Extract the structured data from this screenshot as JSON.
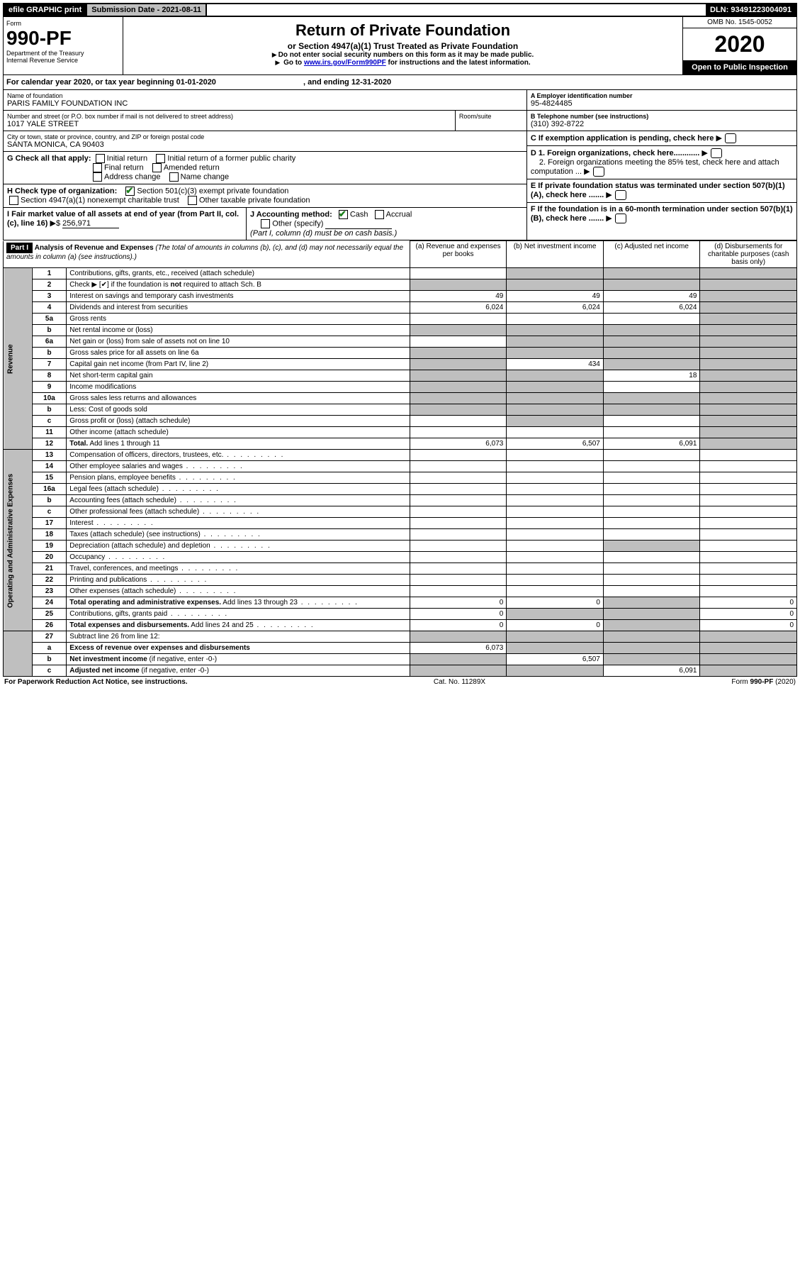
{
  "topbar": {
    "efile": "efile GRAPHIC print",
    "submission": "Submission Date - 2021-08-11",
    "dln": "DLN: 93491223004091"
  },
  "header": {
    "form_word": "Form",
    "form_no": "990-PF",
    "dept": "Department of the Treasury",
    "irs": "Internal Revenue Service",
    "title": "Return of Private Foundation",
    "subtitle": "or Section 4947(a)(1) Trust Treated as Private Foundation",
    "instr1": "Do not enter social security numbers on this form as it may be made public.",
    "instr2_pre": "Go to ",
    "instr2_link": "www.irs.gov/Form990PF",
    "instr2_post": " for instructions and the latest information.",
    "omb": "OMB No. 1545-0052",
    "year": "2020",
    "open": "Open to Public Inspection"
  },
  "calendar": {
    "pre": "For calendar year 2020, or tax year beginning ",
    "begin": "01-01-2020",
    "mid": ", and ending ",
    "end": "12-31-2020"
  },
  "id": {
    "name_lbl": "Name of foundation",
    "name": "PARIS FAMILY FOUNDATION INC",
    "addr_lbl": "Number and street (or P.O. box number if mail is not delivered to street address)",
    "room_lbl": "Room/suite",
    "addr": "1017 YALE STREET",
    "city_lbl": "City or town, state or province, country, and ZIP or foreign postal code",
    "city": "SANTA MONICA, CA  90403",
    "a_lbl": "A Employer identification number",
    "a": "95-4824485",
    "b_lbl": "B Telephone number (see instructions)",
    "b": "(310) 392-8722",
    "c": "C If exemption application is pending, check here",
    "d1": "D 1. Foreign organizations, check here............",
    "d2": "2. Foreign organizations meeting the 85% test, check here and attach computation ...",
    "e": "E If private foundation status was terminated under section 507(b)(1)(A), check here .......",
    "f": "F If the foundation is in a 60-month termination under section 507(b)(1)(B), check here ......."
  },
  "g": {
    "lbl": "G Check all that apply:",
    "opts": [
      "Initial return",
      "Initial return of a former public charity",
      "Final return",
      "Amended return",
      "Address change",
      "Name change"
    ]
  },
  "h": {
    "lbl": "H Check type of organization:",
    "o1": "Section 501(c)(3) exempt private foundation",
    "o2": "Section 4947(a)(1) nonexempt charitable trust",
    "o3": "Other taxable private foundation"
  },
  "i": {
    "lbl": "I Fair market value of all assets at end of year (from Part II, col. (c), line 16)",
    "arrow": "$",
    "val": "256,971"
  },
  "j": {
    "lbl": "J Accounting method:",
    "o1": "Cash",
    "o2": "Accrual",
    "o3": "Other (specify)",
    "note": "(Part I, column (d) must be on cash basis.)"
  },
  "part1": {
    "hdr": "Part I",
    "title": "Analysis of Revenue and Expenses",
    "title_note": "(The total of amounts in columns (b), (c), and (d) may not necessarily equal the amounts in column (a) (see instructions).)",
    "col_a": "(a)   Revenue and expenses per books",
    "col_b": "(b)  Net investment income",
    "col_c": "(c)  Adjusted net income",
    "col_d": "(d)  Disbursements for charitable purposes (cash basis only)"
  },
  "vert": {
    "rev": "Revenue",
    "exp": "Operating and Administrative Expenses"
  },
  "lines": [
    {
      "n": "1",
      "t": "Contributions, gifts, grants, etc., received (attach schedule)",
      "a": "",
      "b": "s",
      "c": "s",
      "d": "s"
    },
    {
      "n": "2",
      "t": "Check ▶ [✔] if the foundation is <b>not</b> required to attach Sch. B",
      "a": "s",
      "b": "s",
      "c": "s",
      "d": "s"
    },
    {
      "n": "3",
      "t": "Interest on savings and temporary cash investments",
      "a": "49",
      "b": "49",
      "c": "49",
      "d": "s"
    },
    {
      "n": "4",
      "t": "Dividends and interest from securities",
      "a": "6,024",
      "b": "6,024",
      "c": "6,024",
      "d": "s"
    },
    {
      "n": "5a",
      "t": "Gross rents",
      "a": "",
      "b": "",
      "c": "",
      "d": "s"
    },
    {
      "n": "b",
      "t": "Net rental income or (loss)",
      "a": "s",
      "b": "s",
      "c": "s",
      "d": "s"
    },
    {
      "n": "6a",
      "t": "Net gain or (loss) from sale of assets not on line 10",
      "a": "",
      "b": "s",
      "c": "s",
      "d": "s"
    },
    {
      "n": "b",
      "t": "Gross sales price for all assets on line 6a",
      "a": "s",
      "b": "s",
      "c": "s",
      "d": "s"
    },
    {
      "n": "7",
      "t": "Capital gain net income (from Part IV, line 2)",
      "a": "s",
      "b": "434",
      "c": "s",
      "d": "s"
    },
    {
      "n": "8",
      "t": "Net short-term capital gain",
      "a": "s",
      "b": "s",
      "c": "18",
      "d": "s"
    },
    {
      "n": "9",
      "t": "Income modifications",
      "a": "s",
      "b": "s",
      "c": "",
      "d": "s"
    },
    {
      "n": "10a",
      "t": "Gross sales less returns and allowances",
      "a": "s",
      "b": "s",
      "c": "s",
      "d": "s"
    },
    {
      "n": "b",
      "t": "Less: Cost of goods sold",
      "a": "s",
      "b": "s",
      "c": "s",
      "d": "s"
    },
    {
      "n": "c",
      "t": "Gross profit or (loss) (attach schedule)",
      "a": "",
      "b": "s",
      "c": "",
      "d": "s"
    },
    {
      "n": "11",
      "t": "Other income (attach schedule)",
      "a": "",
      "b": "",
      "c": "",
      "d": "s"
    },
    {
      "n": "12",
      "t": "<b>Total.</b> Add lines 1 through 11",
      "a": "6,073",
      "b": "6,507",
      "c": "6,091",
      "d": "s"
    }
  ],
  "exp_lines": [
    {
      "n": "13",
      "t": "Compensation of officers, directors, trustees, etc."
    },
    {
      "n": "14",
      "t": "Other employee salaries and wages"
    },
    {
      "n": "15",
      "t": "Pension plans, employee benefits"
    },
    {
      "n": "16a",
      "t": "Legal fees (attach schedule)"
    },
    {
      "n": "b",
      "t": "Accounting fees (attach schedule)"
    },
    {
      "n": "c",
      "t": "Other professional fees (attach schedule)"
    },
    {
      "n": "17",
      "t": "Interest"
    },
    {
      "n": "18",
      "t": "Taxes (attach schedule) (see instructions)"
    },
    {
      "n": "19",
      "t": "Depreciation (attach schedule) and depletion"
    },
    {
      "n": "20",
      "t": "Occupancy"
    },
    {
      "n": "21",
      "t": "Travel, conferences, and meetings"
    },
    {
      "n": "22",
      "t": "Printing and publications"
    },
    {
      "n": "23",
      "t": "Other expenses (attach schedule)"
    },
    {
      "n": "24",
      "t": "<b>Total operating and administrative expenses.</b> Add lines 13 through 23",
      "a": "0",
      "b": "0",
      "c": "s",
      "d": "0"
    },
    {
      "n": "25",
      "t": "Contributions, gifts, grants paid",
      "a": "0",
      "b": "s",
      "c": "s",
      "d": "0"
    },
    {
      "n": "26",
      "t": "<b>Total expenses and disbursements.</b> Add lines 24 and 25",
      "a": "0",
      "b": "0",
      "c": "s",
      "d": "0"
    }
  ],
  "line27": [
    {
      "n": "27",
      "t": "Subtract line 26 from line 12:",
      "a": "s",
      "b": "s",
      "c": "s",
      "d": "s"
    },
    {
      "n": "a",
      "t": "<b>Excess of revenue over expenses and disbursements</b>",
      "a": "6,073",
      "b": "s",
      "c": "s",
      "d": "s"
    },
    {
      "n": "b",
      "t": "<b>Net investment income</b> (if negative, enter -0-)",
      "a": "s",
      "b": "6,507",
      "c": "s",
      "d": "s"
    },
    {
      "n": "c",
      "t": "<b>Adjusted net income</b> (if negative, enter -0-)",
      "a": "s",
      "b": "s",
      "c": "6,091",
      "d": "s"
    }
  ],
  "footer": {
    "left": "For Paperwork Reduction Act Notice, see instructions.",
    "mid": "Cat. No. 11289X",
    "right": "Form 990-PF (2020)"
  }
}
